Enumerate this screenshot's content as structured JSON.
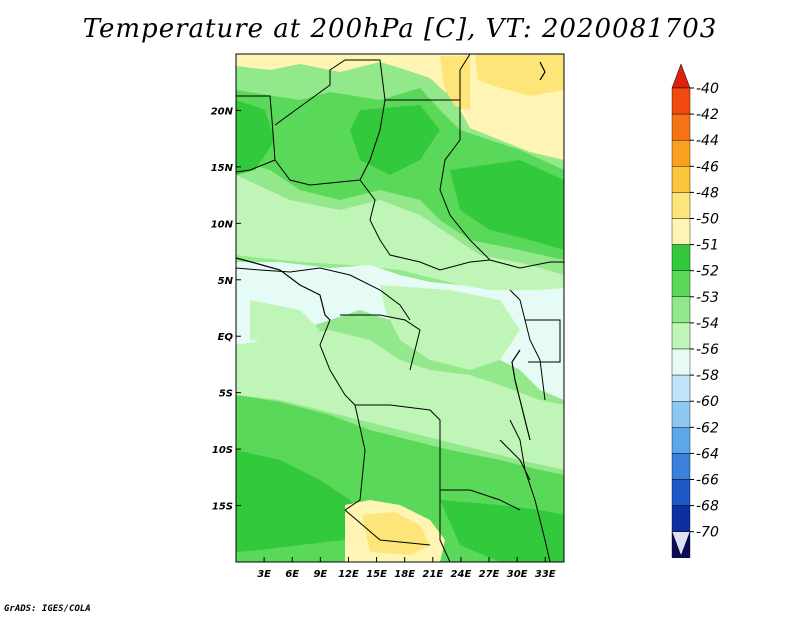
{
  "title": "Temperature at 200hPa [C], VT: 2020081703",
  "credit": "GrADS: IGES/COLA",
  "map": {
    "lon_range": [
      0,
      35
    ],
    "lat_range": [
      -20,
      25
    ],
    "lat_ticks": [
      {
        "value": 20,
        "label": "20N"
      },
      {
        "value": 15,
        "label": "15N"
      },
      {
        "value": 10,
        "label": "10N"
      },
      {
        "value": 5,
        "label": "5N"
      },
      {
        "value": 0,
        "label": "EQ"
      },
      {
        "value": -5,
        "label": "5S"
      },
      {
        "value": -10,
        "label": "10S"
      },
      {
        "value": -15,
        "label": "15S"
      }
    ],
    "lon_ticks": [
      {
        "value": 3,
        "label": "3E"
      },
      {
        "value": 6,
        "label": "6E"
      },
      {
        "value": 9,
        "label": "9E"
      },
      {
        "value": 12,
        "label": "12E"
      },
      {
        "value": 15,
        "label": "15E"
      },
      {
        "value": 18,
        "label": "18E"
      },
      {
        "value": 21,
        "label": "21E"
      },
      {
        "value": 24,
        "label": "24E"
      },
      {
        "value": 27,
        "label": "27E"
      },
      {
        "value": 30,
        "label": "30E"
      },
      {
        "value": 33,
        "label": "33E"
      }
    ]
  },
  "colorbar": {
    "labels": [
      "-40",
      "-42",
      "-44",
      "-46",
      "-48",
      "-50",
      "-51",
      "-52",
      "-53",
      "-54",
      "-56",
      "-58",
      "-60",
      "-62",
      "-64",
      "-66",
      "-68",
      "-70"
    ],
    "colors": [
      "#e0200a",
      "#f04a10",
      "#f67214",
      "#f9a01e",
      "#fbc43c",
      "#fde57a",
      "#fef5b4",
      "#33c93c",
      "#5ad85a",
      "#92e88a",
      "#c0f5b8",
      "#e6fbf6",
      "#c0e4f8",
      "#8ec8f0",
      "#5aa8e8",
      "#3a80dc",
      "#1e58c8",
      "#0c30a0",
      "#080c5a"
    ],
    "top_arrow_color": "#cc1400",
    "bottom_arrow_color": "#e0e0f5"
  }
}
